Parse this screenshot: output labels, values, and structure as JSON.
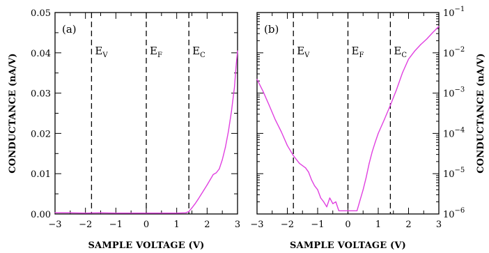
{
  "chart_data": [
    {
      "type": "line",
      "panel_label": "(a)",
      "xlabel": "SAMPLE VOLTAGE (V)",
      "ylabel": "CONDUCTANCE (nA/V)",
      "xlim": [
        -3,
        3
      ],
      "ylim": [
        0,
        0.05
      ],
      "yscale": "linear",
      "xticks": [
        "−3",
        "−2",
        "−1",
        "0",
        "1",
        "2",
        "3"
      ],
      "yticks": [
        "0.00",
        "0.01",
        "0.02",
        "0.03",
        "0.04",
        "0.05"
      ],
      "grid": false,
      "line_color": "#e040e0",
      "vertical_lines": [
        {
          "x": -1.8,
          "label": "E",
          "sub": "V"
        },
        {
          "x": 0.0,
          "label": "E",
          "sub": "F"
        },
        {
          "x": 1.4,
          "label": "E",
          "sub": "C"
        }
      ],
      "series": [
        {
          "x": [
            -3.0,
            -2.5,
            -2.0,
            -1.5,
            -1.0,
            -0.5,
            0.0,
            0.5,
            1.0,
            1.3,
            1.4,
            1.5,
            1.6,
            1.7,
            1.8,
            1.9,
            2.0,
            2.1,
            2.2,
            2.3,
            2.4,
            2.5,
            2.6,
            2.7,
            2.8,
            2.9,
            2.95,
            3.0
          ],
          "y": [
            0.0003,
            0.0003,
            0.0002,
            0.0003,
            0.0002,
            0.0002,
            0.0002,
            0.0002,
            0.0002,
            0.0003,
            0.0006,
            0.0015,
            0.0025,
            0.0036,
            0.0048,
            0.006,
            0.0072,
            0.0085,
            0.0098,
            0.0102,
            0.0112,
            0.0135,
            0.0165,
            0.0205,
            0.0255,
            0.0315,
            0.0365,
            0.0405
          ]
        }
      ]
    },
    {
      "type": "line",
      "panel_label": "(b)",
      "xlabel": "SAMPLE VOLTAGE (V)",
      "ylabel": "CONDUCTANCE (nA/V)",
      "xlim": [
        -3,
        3
      ],
      "ylim": [
        1e-06,
        0.1
      ],
      "yscale": "log",
      "xticks": [
        "−3",
        "−2",
        "−1",
        "0",
        "1",
        "2",
        "3"
      ],
      "yticks": [
        {
          "base": "10",
          "exp": "−6"
        },
        {
          "base": "10",
          "exp": "−5"
        },
        {
          "base": "10",
          "exp": "−4"
        },
        {
          "base": "10",
          "exp": "−3"
        },
        {
          "base": "10",
          "exp": "−2"
        },
        {
          "base": "10",
          "exp": "−1"
        }
      ],
      "grid": false,
      "line_color": "#e040e0",
      "vertical_lines": [
        {
          "x": -1.8,
          "label": "E",
          "sub": "V"
        },
        {
          "x": 0.0,
          "label": "E",
          "sub": "F"
        },
        {
          "x": 1.4,
          "label": "E",
          "sub": "C"
        }
      ],
      "series": [
        {
          "x": [
            -3.0,
            -2.8,
            -2.6,
            -2.4,
            -2.2,
            -2.0,
            -1.8,
            -1.6,
            -1.4,
            -1.3,
            -1.2,
            -1.1,
            -1.0,
            -0.9,
            -0.8,
            -0.7,
            -0.6,
            -0.5,
            -0.4,
            -0.3,
            0.3,
            0.4,
            0.5,
            0.6,
            0.7,
            0.8,
            0.9,
            1.0,
            1.2,
            1.4,
            1.6,
            1.8,
            2.0,
            2.2,
            2.4,
            2.6,
            2.8,
            3.0
          ],
          "y": [
            0.0022,
            0.0011,
            0.0005,
            0.00022,
            0.00011,
            5e-05,
            2.8e-05,
            1.8e-05,
            1.4e-05,
            1.1e-05,
            7e-06,
            5e-06,
            4e-06,
            2.5e-06,
            2e-06,
            1.5e-06,
            2.5e-06,
            1.8e-06,
            2e-06,
            1.2e-06,
            1.2e-06,
            2.2e-06,
            4e-06,
            8e-06,
            1.8e-05,
            3.5e-05,
            6e-05,
            0.0001,
            0.00022,
            0.0005,
            0.0012,
            0.0032,
            0.007,
            0.011,
            0.016,
            0.022,
            0.032,
            0.045
          ]
        }
      ]
    }
  ]
}
